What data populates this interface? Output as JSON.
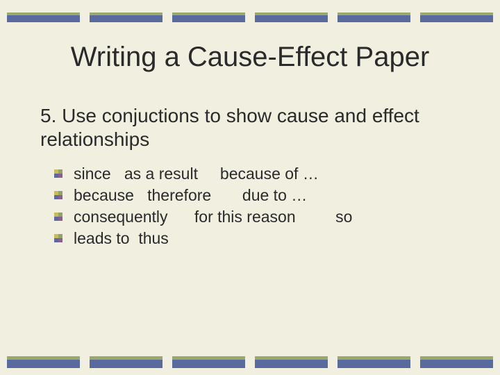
{
  "colors": {
    "background": "#f1efe0",
    "bar_top": "#9aa86e",
    "bar_bottom": "#5a6a9e",
    "text": "#2a2a2a",
    "bullet_q1": "#c7bc57",
    "bullet_q2": "#94a268",
    "bullet_q3": "#5a6a9e",
    "bullet_q4": "#8a5f8a"
  },
  "typography": {
    "title_fontsize": 40,
    "heading_fontsize": 28,
    "bullet_fontsize": 23,
    "font_family": "Arial"
  },
  "layout": {
    "bar_segments": 6,
    "top_bar_heights": [
      4,
      10
    ],
    "bottom_bar_heights": [
      5,
      12
    ]
  },
  "slide": {
    "title": "Writing a Cause-Effect Paper",
    "heading": "5. Use conjuctions to show cause and effect relationships",
    "bullets": [
      "since   as a result     because of …",
      "because   therefore       due to …",
      "consequently      for this reason         so",
      "leads to  thus"
    ]
  }
}
